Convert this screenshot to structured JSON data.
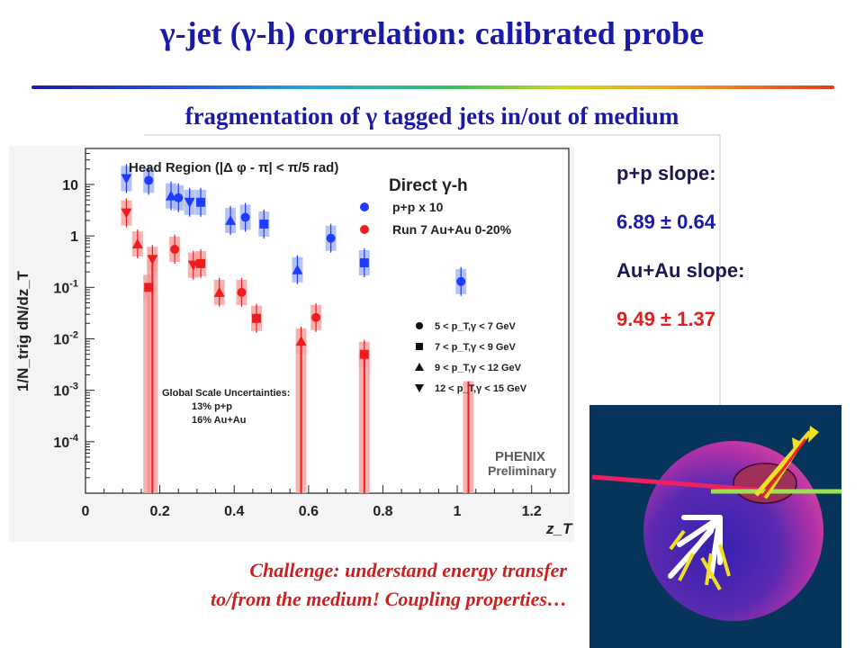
{
  "slide": {
    "title": "γ-jet (γ-h) correlation: calibrated probe",
    "subtitle": "fragmentation of γ tagged jets in/out of medium",
    "pp_slope_label": "p+p slope:",
    "pp_slope_value": "6.89 ± 0.64",
    "auau_slope_label": "Au+Au slope:",
    "auau_slope_value": "9.49 ± 1.37",
    "challenge_line1": "Challenge: understand energy transfer",
    "challenge_line2": "to/from the medium! Coupling properties…"
  },
  "colors": {
    "title": "#1a1aa6",
    "pp": "#1e3cff",
    "auau": "#ee1c1c",
    "challenge": "#cc1f1f"
  },
  "chart_data": {
    "type": "scatter",
    "title": "Head Region (|Δ φ - π| < π/5 rad)",
    "plot_label": "Direct γ-h",
    "xlabel": "z_T",
    "ylabel": "1/N_trig dN/dz_T",
    "xlim": [
      0,
      1.3
    ],
    "ylim": [
      1e-05,
      50
    ],
    "yscale": "log",
    "x_ticks": [
      "0",
      "0.2",
      "0.4",
      "0.6",
      "0.8",
      "1",
      "1.2"
    ],
    "y_ticks": [
      "10^-4",
      "10^-3",
      "10^-2",
      "10^-1",
      "1",
      "10"
    ],
    "series": [
      {
        "name": "p+p x 10",
        "color": "#1e3cff",
        "points": [
          {
            "x": 0.11,
            "y": 13,
            "marker": "triangle-down"
          },
          {
            "x": 0.17,
            "y": 12,
            "marker": "circle"
          },
          {
            "x": 0.23,
            "y": 6,
            "marker": "triangle-up"
          },
          {
            "x": 0.25,
            "y": 5.5,
            "marker": "circle"
          },
          {
            "x": 0.28,
            "y": 4.5,
            "marker": "triangle-down"
          },
          {
            "x": 0.31,
            "y": 4.5,
            "marker": "square"
          },
          {
            "x": 0.39,
            "y": 2,
            "marker": "triangle-up"
          },
          {
            "x": 0.43,
            "y": 2.3,
            "marker": "circle"
          },
          {
            "x": 0.48,
            "y": 1.7,
            "marker": "square"
          },
          {
            "x": 0.57,
            "y": 0.22,
            "marker": "triangle-up"
          },
          {
            "x": 0.66,
            "y": 0.9,
            "marker": "circle"
          },
          {
            "x": 0.75,
            "y": 0.3,
            "marker": "square"
          },
          {
            "x": 1.01,
            "y": 0.13,
            "marker": "circle"
          }
        ]
      },
      {
        "name": "Run 7 Au+Au 0-20%",
        "color": "#ee1c1c",
        "points": [
          {
            "x": 0.11,
            "y": 2.8,
            "marker": "triangle-down"
          },
          {
            "x": 0.14,
            "y": 0.7,
            "marker": "triangle-up"
          },
          {
            "x": 0.17,
            "y": 0.1,
            "marker": "square"
          },
          {
            "x": 0.18,
            "y": 0.35,
            "marker": "triangle-down"
          },
          {
            "x": 0.24,
            "y": 0.55,
            "marker": "circle"
          },
          {
            "x": 0.29,
            "y": 0.27,
            "marker": "triangle-down"
          },
          {
            "x": 0.31,
            "y": 0.29,
            "marker": "square"
          },
          {
            "x": 0.36,
            "y": 0.08,
            "marker": "triangle-up"
          },
          {
            "x": 0.42,
            "y": 0.08,
            "marker": "circle"
          },
          {
            "x": 0.46,
            "y": 0.025,
            "marker": "square"
          },
          {
            "x": 0.58,
            "y": 0.009,
            "marker": "triangle-up"
          },
          {
            "x": 0.62,
            "y": 0.026,
            "marker": "circle"
          },
          {
            "x": 0.75,
            "y": 0.005,
            "marker": "square"
          }
        ]
      }
    ],
    "marker_legend": [
      {
        "marker": "circle",
        "label": "5 < p_T,γ < 7 GeV"
      },
      {
        "marker": "square",
        "label": "7 < p_T,γ < 9 GeV"
      },
      {
        "marker": "triangle-up",
        "label": "9 < p_T,γ < 12 GeV"
      },
      {
        "marker": "triangle-down",
        "label": "12 < p_T,γ < 15 GeV"
      }
    ],
    "uncertainty_note": [
      "Global Scale Uncertainties:",
      "13% p+p",
      "16% Au+Au"
    ],
    "logo": [
      "PHENIX",
      "Preliminary"
    ]
  }
}
